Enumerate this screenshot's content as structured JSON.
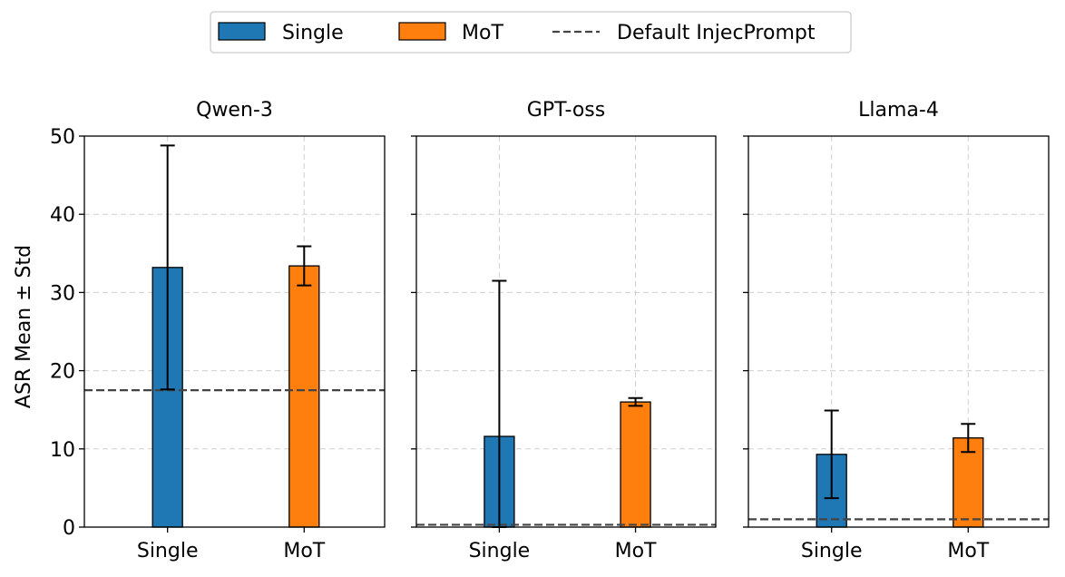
{
  "chart_data": {
    "type": "bar",
    "ylabel": "ASR Mean ± Std",
    "ylim": [
      0,
      50
    ],
    "yticks": [
      0,
      10,
      20,
      30,
      40,
      50
    ],
    "grid": true,
    "legend_position": "top-center",
    "legend": [
      {
        "label": "Single",
        "kind": "bar",
        "color": "#1f77b4"
      },
      {
        "label": "MoT",
        "kind": "bar",
        "color": "#ff7f0e"
      },
      {
        "label": "Default InjecPrompt",
        "kind": "dashed-line",
        "color": "#444444"
      }
    ],
    "categories": [
      "Single",
      "MoT"
    ],
    "colors": [
      "#1f77b4",
      "#ff7f0e"
    ],
    "panels": [
      {
        "title": "Qwen-3",
        "values": [
          33.2,
          33.4
        ],
        "std": [
          15.6,
          2.5
        ],
        "baseline": 17.5
      },
      {
        "title": "GPT-oss",
        "values": [
          11.6,
          16.0
        ],
        "std": [
          19.9,
          0.5
        ],
        "baseline": 0.3
      },
      {
        "title": "Llama-4",
        "values": [
          9.3,
          11.4
        ],
        "std": [
          5.6,
          1.8
        ],
        "baseline": 1.0
      }
    ]
  }
}
